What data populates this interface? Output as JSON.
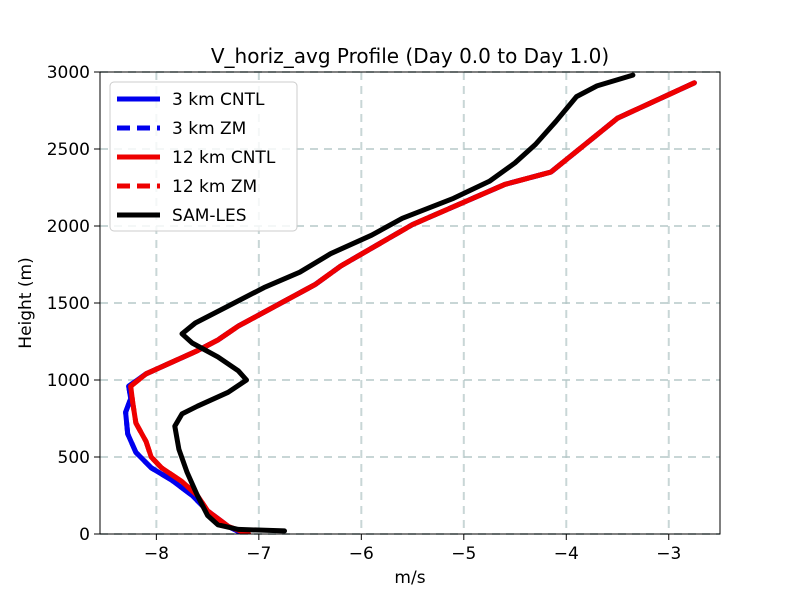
{
  "chart_data": {
    "type": "line",
    "title": "V_horiz_avg Profile (Day 0.0 to Day 1.0)",
    "xlabel": "m/s",
    "ylabel": "Height (m)",
    "xlim": [
      -8.55,
      -2.5
    ],
    "ylim": [
      0,
      3000
    ],
    "xticks": [
      -8,
      -7,
      -6,
      -5,
      -4,
      -3
    ],
    "xtick_labels": [
      "−8",
      "−7",
      "−6",
      "−5",
      "−4",
      "−3"
    ],
    "yticks": [
      0,
      500,
      1000,
      1500,
      2000,
      2500,
      3000
    ],
    "ytick_labels": [
      "0",
      "500",
      "1000",
      "1500",
      "2000",
      "2500",
      "3000"
    ],
    "grid": true,
    "legend_position": "top-left",
    "series": [
      {
        "name": "3 km CNTL",
        "color": "#0000ee",
        "dash": "solid",
        "points": [
          [
            -7.15,
            0
          ],
          [
            -7.3,
            50
          ],
          [
            -7.5,
            150
          ],
          [
            -7.65,
            250
          ],
          [
            -7.85,
            350
          ],
          [
            -8.05,
            430
          ],
          [
            -8.2,
            530
          ],
          [
            -8.28,
            650
          ],
          [
            -8.3,
            790
          ],
          [
            -8.25,
            880
          ],
          [
            -8.27,
            960
          ],
          [
            -8.1,
            1040
          ],
          [
            -7.6,
            1190
          ],
          [
            -7.4,
            1260
          ],
          [
            -7.2,
            1350
          ],
          [
            -6.45,
            1620
          ],
          [
            -6.2,
            1740
          ],
          [
            -5.5,
            2010
          ],
          [
            -4.6,
            2270
          ],
          [
            -4.15,
            2350
          ],
          [
            -3.5,
            2700
          ],
          [
            -2.75,
            2930
          ]
        ]
      },
      {
        "name": "3 km ZM",
        "color": "#0000ee",
        "dash": "dashed",
        "points": [
          [
            -7.15,
            0
          ],
          [
            -7.3,
            50
          ],
          [
            -7.5,
            150
          ],
          [
            -7.65,
            250
          ],
          [
            -7.85,
            350
          ],
          [
            -8.05,
            430
          ],
          [
            -8.2,
            530
          ],
          [
            -8.28,
            650
          ],
          [
            -8.3,
            790
          ],
          [
            -8.25,
            880
          ],
          [
            -8.27,
            960
          ],
          [
            -8.1,
            1040
          ],
          [
            -7.6,
            1190
          ],
          [
            -7.4,
            1260
          ],
          [
            -7.2,
            1350
          ],
          [
            -6.45,
            1620
          ],
          [
            -6.2,
            1740
          ],
          [
            -5.5,
            2010
          ],
          [
            -4.6,
            2270
          ],
          [
            -4.15,
            2350
          ],
          [
            -3.5,
            2700
          ],
          [
            -2.75,
            2930
          ]
        ]
      },
      {
        "name": "12 km CNTL",
        "color": "#ee0000",
        "dash": "solid",
        "points": [
          [
            -7.1,
            0
          ],
          [
            -7.3,
            50
          ],
          [
            -7.5,
            150
          ],
          [
            -7.6,
            250
          ],
          [
            -7.75,
            340
          ],
          [
            -7.95,
            430
          ],
          [
            -8.05,
            500
          ],
          [
            -8.1,
            600
          ],
          [
            -8.2,
            720
          ],
          [
            -8.23,
            850
          ],
          [
            -8.25,
            960
          ],
          [
            -8.1,
            1040
          ],
          [
            -7.6,
            1190
          ],
          [
            -7.4,
            1260
          ],
          [
            -7.2,
            1350
          ],
          [
            -6.45,
            1620
          ],
          [
            -6.2,
            1740
          ],
          [
            -5.5,
            2010
          ],
          [
            -4.6,
            2270
          ],
          [
            -4.15,
            2350
          ],
          [
            -3.5,
            2700
          ],
          [
            -2.75,
            2930
          ]
        ]
      },
      {
        "name": "12 km ZM",
        "color": "#ee0000",
        "dash": "dashed",
        "points": [
          [
            -7.1,
            0
          ],
          [
            -7.3,
            50
          ],
          [
            -7.5,
            150
          ],
          [
            -7.6,
            250
          ],
          [
            -7.75,
            340
          ],
          [
            -7.95,
            430
          ],
          [
            -8.05,
            500
          ],
          [
            -8.1,
            600
          ],
          [
            -8.2,
            720
          ],
          [
            -8.23,
            850
          ],
          [
            -8.25,
            960
          ],
          [
            -8.1,
            1040
          ],
          [
            -7.6,
            1190
          ],
          [
            -7.4,
            1260
          ],
          [
            -7.2,
            1350
          ],
          [
            -6.45,
            1620
          ],
          [
            -6.2,
            1740
          ],
          [
            -5.5,
            2010
          ],
          [
            -4.6,
            2270
          ],
          [
            -4.15,
            2350
          ],
          [
            -3.5,
            2700
          ],
          [
            -2.75,
            2930
          ]
        ]
      },
      {
        "name": "SAM-LES",
        "color": "#000000",
        "dash": "solid",
        "points": [
          [
            -6.75,
            20
          ],
          [
            -7.2,
            30
          ],
          [
            -7.4,
            60
          ],
          [
            -7.5,
            120
          ],
          [
            -7.6,
            250
          ],
          [
            -7.7,
            400
          ],
          [
            -7.78,
            550
          ],
          [
            -7.82,
            700
          ],
          [
            -7.75,
            780
          ],
          [
            -7.6,
            830
          ],
          [
            -7.3,
            920
          ],
          [
            -7.12,
            1000
          ],
          [
            -7.2,
            1060
          ],
          [
            -7.4,
            1150
          ],
          [
            -7.65,
            1240
          ],
          [
            -7.75,
            1300
          ],
          [
            -7.62,
            1370
          ],
          [
            -7.3,
            1480
          ],
          [
            -6.95,
            1600
          ],
          [
            -6.6,
            1700
          ],
          [
            -6.3,
            1820
          ],
          [
            -5.9,
            1940
          ],
          [
            -5.6,
            2050
          ],
          [
            -5.1,
            2180
          ],
          [
            -4.75,
            2290
          ],
          [
            -4.5,
            2410
          ],
          [
            -4.3,
            2530
          ],
          [
            -4.1,
            2680
          ],
          [
            -3.9,
            2840
          ],
          [
            -3.7,
            2910
          ],
          [
            -3.35,
            2980
          ]
        ]
      }
    ]
  }
}
